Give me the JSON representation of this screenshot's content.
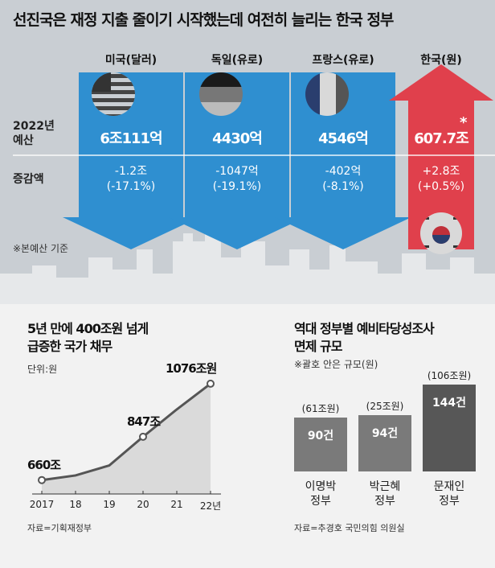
{
  "header": {
    "title": "선진국은 재정 지출 줄이기 시작했는데 여전히 늘리는 한국 정부"
  },
  "budget": {
    "row_labels": {
      "budget": "2022년\n예산",
      "change": "증감액"
    },
    "countries": [
      {
        "name": "미국(달러)",
        "budget": "6조111억",
        "change": "-1.2조",
        "change_pct": "(-17.1%)",
        "direction": "down",
        "flag": "usa-flag-icon"
      },
      {
        "name": "독일(유로)",
        "budget": "4430억",
        "change": "-1047억",
        "change_pct": "(-19.1%)",
        "direction": "down",
        "flag": "germany-flag-icon"
      },
      {
        "name": "프랑스(유로)",
        "budget": "4546억",
        "change": "-402억",
        "change_pct": "(-8.1%)",
        "direction": "down",
        "flag": "france-flag-icon"
      },
      {
        "name": "한국(원)",
        "budget": "607.7조",
        "change": "+2.8조",
        "change_pct": "(+0.5%)",
        "direction": "up",
        "flag": "korea-flag-icon",
        "marker": "*"
      }
    ],
    "note": "※본예산 기준",
    "colors": {
      "down": "#2f8fd0",
      "up": "#e0404c"
    }
  },
  "debt_chart": {
    "title_line1": "5년 만에 400조원 넘게",
    "title_line2": "급증한 국가 채무",
    "unit": "단위:원",
    "source": "자료=기획재정부",
    "labeled_points": [
      "660조",
      "847조",
      "1076조원"
    ]
  },
  "exemption_chart": {
    "title_line1": "역대 정부별 예비타당성조사",
    "title_line2": "면제 규모",
    "note": "※괄호 안은 규모(원)",
    "source": "자료=추경호 국민의힘 의원실"
  },
  "chart_data": [
    {
      "type": "area",
      "title": "5년 만에 400조원 넘게 급증한 국가 채무",
      "categories": [
        "2017",
        "18",
        "19",
        "20",
        "21",
        "22년"
      ],
      "series": [
        {
          "values": [
            660,
            680,
            723,
            847,
            965,
            1076
          ]
        }
      ],
      "ylabel": "",
      "xlabel": "",
      "ylim": [
        600,
        1100
      ],
      "grid": false,
      "data_labels": [
        "660조",
        "847조",
        "1076조원"
      ]
    },
    {
      "type": "bar",
      "title": "역대 정부별 예비타당성조사 면제 규모",
      "categories": [
        "이명박\n정부",
        "박근혜\n정부",
        "문재인\n정부"
      ],
      "values": [
        90,
        94,
        144
      ],
      "value_labels": [
        "90건",
        "94건",
        "144건"
      ],
      "amount_labels": [
        "(61조원)",
        "(25조원)",
        "(106조원)"
      ],
      "ylim": [
        0,
        160
      ]
    }
  ]
}
